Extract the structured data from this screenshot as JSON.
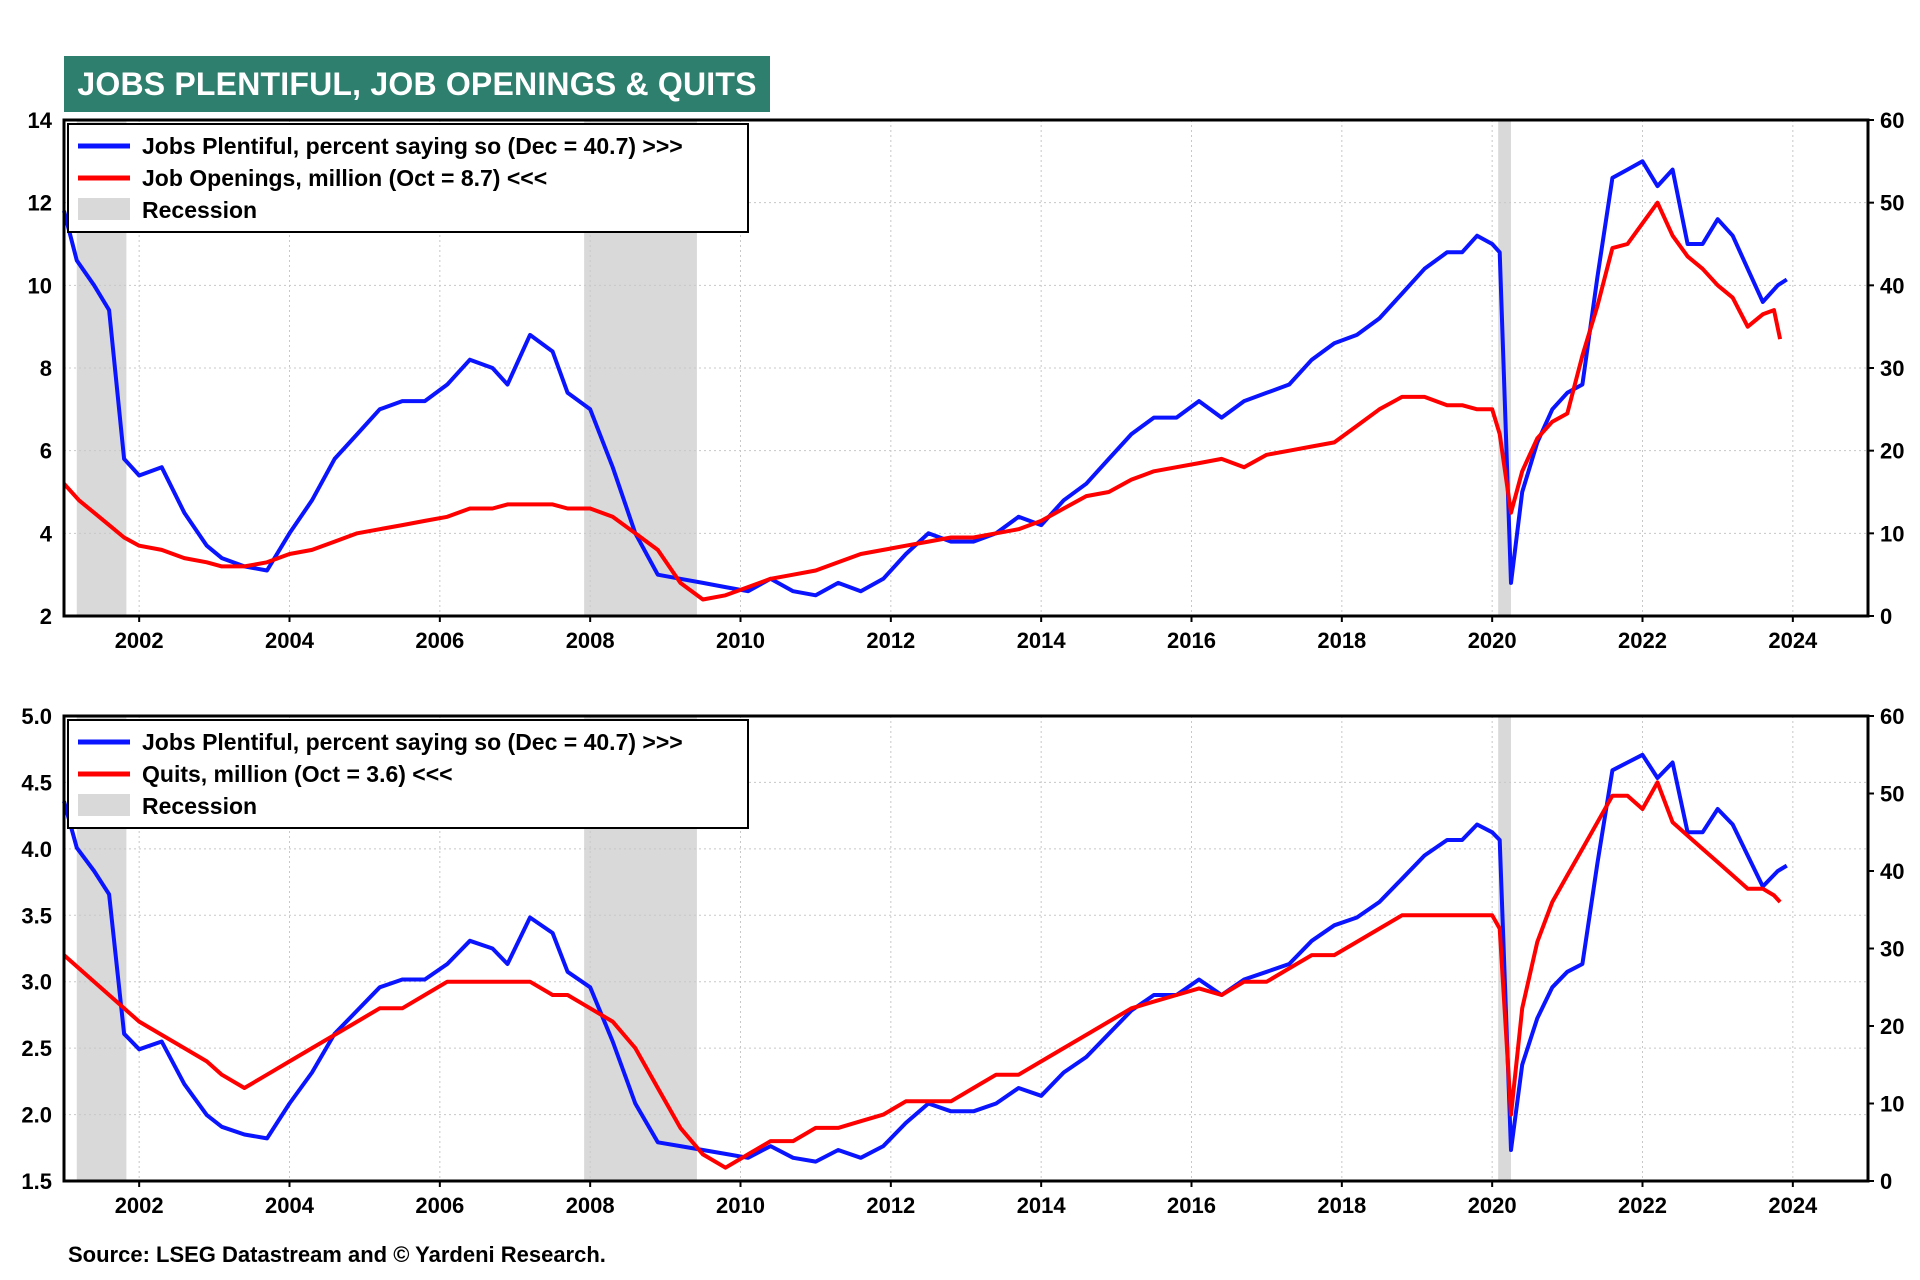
{
  "title": "JOBS PLENTIFUL, JOB OPENINGS & QUITS",
  "source": "Source: LSEG Datastream and © Yardeni Research.",
  "colors": {
    "banner": "#2e7f6e",
    "blue": "#0a14ff",
    "red": "#ff0000",
    "recession": "#d9d9d9",
    "grid": "#c8c8c8"
  },
  "chart_data": [
    {
      "type": "line",
      "x_ticks": [
        "2002",
        "2004",
        "2006",
        "2008",
        "2010",
        "2012",
        "2014",
        "2016",
        "2018",
        "2020",
        "2022",
        "2024"
      ],
      "left_axis": {
        "ylim": [
          2,
          14
        ],
        "ticks": [
          "2",
          "4",
          "6",
          "8",
          "10",
          "12",
          "14"
        ]
      },
      "right_axis": {
        "ylim": [
          0,
          60
        ],
        "ticks": [
          "0",
          "10",
          "20",
          "30",
          "40",
          "50",
          "60"
        ]
      },
      "recessions": [
        [
          2001.17,
          2001.83
        ],
        [
          2007.92,
          2009.42
        ],
        [
          2020.08,
          2020.25
        ]
      ],
      "legend": [
        {
          "label": "Jobs Plentiful, percent saying so (Dec = 40.7) >>>",
          "kind": "blue-line"
        },
        {
          "label": "Job Openings, million (Oct = 8.7) <<<",
          "kind": "red-line"
        },
        {
          "label": "Recession",
          "kind": "shade"
        }
      ],
      "series": [
        {
          "name": "Jobs Plentiful, percent saying so (Dec = 40.7) >>>",
          "axis": "right",
          "x": [
            2001.0,
            2001.17,
            2001.4,
            2001.6,
            2001.8,
            2002.0,
            2002.3,
            2002.6,
            2002.9,
            2003.1,
            2003.4,
            2003.7,
            2004.0,
            2004.3,
            2004.6,
            2004.9,
            2005.2,
            2005.5,
            2005.8,
            2006.1,
            2006.4,
            2006.7,
            2006.9,
            2007.2,
            2007.5,
            2007.7,
            2008.0,
            2008.3,
            2008.6,
            2008.9,
            2009.2,
            2009.5,
            2009.8,
            2010.1,
            2010.4,
            2010.7,
            2011.0,
            2011.3,
            2011.6,
            2011.9,
            2012.2,
            2012.5,
            2012.8,
            2013.1,
            2013.4,
            2013.7,
            2014.0,
            2014.3,
            2014.6,
            2014.9,
            2015.2,
            2015.5,
            2015.8,
            2016.1,
            2016.4,
            2016.7,
            2017.0,
            2017.3,
            2017.6,
            2017.9,
            2018.2,
            2018.5,
            2018.8,
            2019.1,
            2019.4,
            2019.6,
            2019.8,
            2020.0,
            2020.1,
            2020.25,
            2020.4,
            2020.6,
            2020.8,
            2021.0,
            2021.2,
            2021.4,
            2021.6,
            2021.8,
            2022.0,
            2022.2,
            2022.4,
            2022.6,
            2022.8,
            2023.0,
            2023.2,
            2023.4,
            2023.6,
            2023.8,
            2023.92
          ],
          "values": [
            49,
            43,
            40,
            37,
            19,
            17,
            18,
            12.5,
            8.5,
            7,
            6,
            5.5,
            10,
            14,
            19,
            22,
            25,
            26,
            26,
            28,
            31,
            30,
            28,
            34,
            32,
            27,
            25,
            18,
            10,
            5,
            4.5,
            4,
            3.5,
            3,
            4.5,
            3,
            2.5,
            4,
            3,
            4.5,
            7.5,
            10,
            9,
            9,
            10,
            12,
            11,
            14,
            16,
            19,
            22,
            24,
            24,
            26,
            24,
            26,
            27,
            28,
            31,
            33,
            34,
            36,
            39,
            42,
            44,
            44,
            46,
            45,
            44,
            4,
            15,
            21,
            25,
            27,
            28,
            41,
            53,
            54,
            55,
            52,
            54,
            45,
            45,
            48,
            46,
            42,
            38,
            40,
            40.7
          ]
        },
        {
          "name": "Job Openings, million (Oct = 8.7) <<<",
          "axis": "left",
          "x": [
            2001.0,
            2001.2,
            2001.4,
            2001.6,
            2001.8,
            2002.0,
            2002.3,
            2002.6,
            2002.9,
            2003.1,
            2003.4,
            2003.7,
            2004.0,
            2004.3,
            2004.6,
            2004.9,
            2005.2,
            2005.5,
            2005.8,
            2006.1,
            2006.4,
            2006.7,
            2006.9,
            2007.2,
            2007.5,
            2007.7,
            2008.0,
            2008.3,
            2008.6,
            2008.9,
            2009.2,
            2009.5,
            2009.8,
            2010.1,
            2010.4,
            2010.7,
            2011.0,
            2011.3,
            2011.6,
            2011.9,
            2012.2,
            2012.5,
            2012.8,
            2013.1,
            2013.4,
            2013.7,
            2014.0,
            2014.3,
            2014.6,
            2014.9,
            2015.2,
            2015.5,
            2015.8,
            2016.1,
            2016.4,
            2016.7,
            2017.0,
            2017.3,
            2017.6,
            2017.9,
            2018.2,
            2018.5,
            2018.8,
            2019.1,
            2019.4,
            2019.6,
            2019.8,
            2020.0,
            2020.1,
            2020.25,
            2020.4,
            2020.6,
            2020.8,
            2021.0,
            2021.2,
            2021.4,
            2021.6,
            2021.8,
            2022.0,
            2022.2,
            2022.4,
            2022.6,
            2022.8,
            2023.0,
            2023.2,
            2023.4,
            2023.6,
            2023.75,
            2023.83
          ],
          "values": [
            5.2,
            4.8,
            4.5,
            4.2,
            3.9,
            3.7,
            3.6,
            3.4,
            3.3,
            3.2,
            3.2,
            3.3,
            3.5,
            3.6,
            3.8,
            4.0,
            4.1,
            4.2,
            4.3,
            4.4,
            4.6,
            4.6,
            4.7,
            4.7,
            4.7,
            4.6,
            4.6,
            4.4,
            4.0,
            3.6,
            2.8,
            2.4,
            2.5,
            2.7,
            2.9,
            3.0,
            3.1,
            3.3,
            3.5,
            3.6,
            3.7,
            3.8,
            3.9,
            3.9,
            4.0,
            4.1,
            4.3,
            4.6,
            4.9,
            5.0,
            5.3,
            5.5,
            5.6,
            5.7,
            5.8,
            5.6,
            5.9,
            6.0,
            6.1,
            6.2,
            6.6,
            7.0,
            7.3,
            7.3,
            7.1,
            7.1,
            7.0,
            7.0,
            6.4,
            4.5,
            5.5,
            6.3,
            6.7,
            6.9,
            8.3,
            9.5,
            10.9,
            11.0,
            11.5,
            12.0,
            11.2,
            10.7,
            10.4,
            10.0,
            9.7,
            9.0,
            9.3,
            9.4,
            8.7
          ]
        }
      ]
    },
    {
      "type": "line",
      "x_ticks": [
        "2002",
        "2004",
        "2006",
        "2008",
        "2010",
        "2012",
        "2014",
        "2016",
        "2018",
        "2020",
        "2022",
        "2024"
      ],
      "left_axis": {
        "ylim": [
          1.5,
          5.0
        ],
        "ticks": [
          "1.5",
          "2.0",
          "2.5",
          "3.0",
          "3.5",
          "4.0",
          "4.5",
          "5.0"
        ]
      },
      "right_axis": {
        "ylim": [
          0,
          60
        ],
        "ticks": [
          "0",
          "10",
          "20",
          "30",
          "40",
          "50",
          "60"
        ]
      },
      "recessions": [
        [
          2001.17,
          2001.83
        ],
        [
          2007.92,
          2009.42
        ],
        [
          2020.08,
          2020.25
        ]
      ],
      "legend": [
        {
          "label": "Jobs Plentiful, percent saying so (Dec = 40.7) >>>",
          "kind": "blue-line"
        },
        {
          "label": "Quits, million (Oct = 3.6) <<<",
          "kind": "red-line"
        },
        {
          "label": "Recession",
          "kind": "shade"
        }
      ],
      "series": [
        {
          "name": "Jobs Plentiful, percent saying so (Dec = 40.7) >>>",
          "axis": "right",
          "x": [
            2001.0,
            2001.17,
            2001.4,
            2001.6,
            2001.8,
            2002.0,
            2002.3,
            2002.6,
            2002.9,
            2003.1,
            2003.4,
            2003.7,
            2004.0,
            2004.3,
            2004.6,
            2004.9,
            2005.2,
            2005.5,
            2005.8,
            2006.1,
            2006.4,
            2006.7,
            2006.9,
            2007.2,
            2007.5,
            2007.7,
            2008.0,
            2008.3,
            2008.6,
            2008.9,
            2009.2,
            2009.5,
            2009.8,
            2010.1,
            2010.4,
            2010.7,
            2011.0,
            2011.3,
            2011.6,
            2011.9,
            2012.2,
            2012.5,
            2012.8,
            2013.1,
            2013.4,
            2013.7,
            2014.0,
            2014.3,
            2014.6,
            2014.9,
            2015.2,
            2015.5,
            2015.8,
            2016.1,
            2016.4,
            2016.7,
            2017.0,
            2017.3,
            2017.6,
            2017.9,
            2018.2,
            2018.5,
            2018.8,
            2019.1,
            2019.4,
            2019.6,
            2019.8,
            2020.0,
            2020.1,
            2020.25,
            2020.4,
            2020.6,
            2020.8,
            2021.0,
            2021.2,
            2021.4,
            2021.6,
            2021.8,
            2022.0,
            2022.2,
            2022.4,
            2022.6,
            2022.8,
            2023.0,
            2023.2,
            2023.4,
            2023.6,
            2023.8,
            2023.92
          ],
          "values": [
            49,
            43,
            40,
            37,
            19,
            17,
            18,
            12.5,
            8.5,
            7,
            6,
            5.5,
            10,
            14,
            19,
            22,
            25,
            26,
            26,
            28,
            31,
            30,
            28,
            34,
            32,
            27,
            25,
            18,
            10,
            5,
            4.5,
            4,
            3.5,
            3,
            4.5,
            3,
            2.5,
            4,
            3,
            4.5,
            7.5,
            10,
            9,
            9,
            10,
            12,
            11,
            14,
            16,
            19,
            22,
            24,
            24,
            26,
            24,
            26,
            27,
            28,
            31,
            33,
            34,
            36,
            39,
            42,
            44,
            44,
            46,
            45,
            44,
            4,
            15,
            21,
            25,
            27,
            28,
            41,
            53,
            54,
            55,
            52,
            54,
            45,
            45,
            48,
            46,
            42,
            38,
            40,
            40.7
          ]
        },
        {
          "name": "Quits, million (Oct = 3.6) <<<",
          "axis": "left",
          "x": [
            2001.0,
            2001.2,
            2001.4,
            2001.6,
            2001.8,
            2002.0,
            2002.3,
            2002.6,
            2002.9,
            2003.1,
            2003.4,
            2003.7,
            2004.0,
            2004.3,
            2004.6,
            2004.9,
            2005.2,
            2005.5,
            2005.8,
            2006.1,
            2006.4,
            2006.7,
            2006.9,
            2007.2,
            2007.5,
            2007.7,
            2008.0,
            2008.3,
            2008.6,
            2008.9,
            2009.2,
            2009.5,
            2009.8,
            2010.1,
            2010.4,
            2010.7,
            2011.0,
            2011.3,
            2011.6,
            2011.9,
            2012.2,
            2012.5,
            2012.8,
            2013.1,
            2013.4,
            2013.7,
            2014.0,
            2014.3,
            2014.6,
            2014.9,
            2015.2,
            2015.5,
            2015.8,
            2016.1,
            2016.4,
            2016.7,
            2017.0,
            2017.3,
            2017.6,
            2017.9,
            2018.2,
            2018.5,
            2018.8,
            2019.1,
            2019.4,
            2019.6,
            2019.8,
            2020.0,
            2020.1,
            2020.25,
            2020.4,
            2020.6,
            2020.8,
            2021.0,
            2021.2,
            2021.4,
            2021.6,
            2021.8,
            2022.0,
            2022.2,
            2022.4,
            2022.6,
            2022.8,
            2023.0,
            2023.2,
            2023.4,
            2023.6,
            2023.75,
            2023.83
          ],
          "values": [
            3.2,
            3.1,
            3.0,
            2.9,
            2.8,
            2.7,
            2.6,
            2.5,
            2.4,
            2.3,
            2.2,
            2.3,
            2.4,
            2.5,
            2.6,
            2.7,
            2.8,
            2.8,
            2.9,
            3.0,
            3.0,
            3.0,
            3.0,
            3.0,
            2.9,
            2.9,
            2.8,
            2.7,
            2.5,
            2.2,
            1.9,
            1.7,
            1.6,
            1.7,
            1.8,
            1.8,
            1.9,
            1.9,
            1.95,
            2.0,
            2.1,
            2.1,
            2.1,
            2.2,
            2.3,
            2.3,
            2.4,
            2.5,
            2.6,
            2.7,
            2.8,
            2.85,
            2.9,
            2.95,
            2.9,
            3.0,
            3.0,
            3.1,
            3.2,
            3.2,
            3.3,
            3.4,
            3.5,
            3.5,
            3.5,
            3.5,
            3.5,
            3.5,
            3.4,
            2.0,
            2.8,
            3.3,
            3.6,
            3.8,
            4.0,
            4.2,
            4.4,
            4.4,
            4.3,
            4.5,
            4.2,
            4.1,
            4.0,
            3.9,
            3.8,
            3.7,
            3.7,
            3.65,
            3.6
          ]
        }
      ]
    }
  ]
}
